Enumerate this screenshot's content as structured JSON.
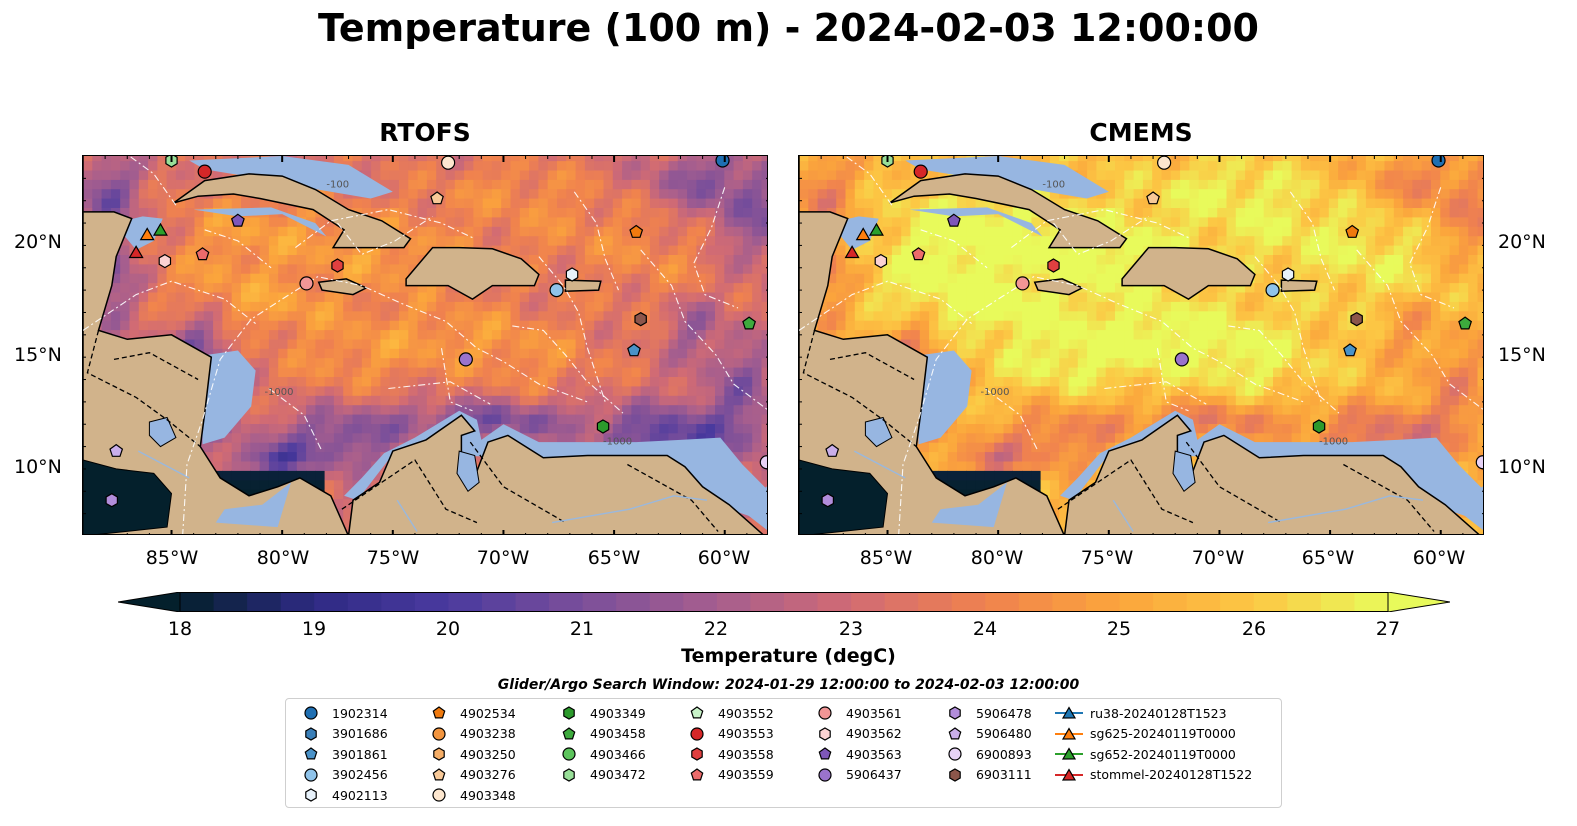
{
  "title": "Temperature (100 m) - 2024-02-03 12:00:00",
  "panels": [
    {
      "title": "RTOFS",
      "field": "rtofs"
    },
    {
      "title": "CMEMS",
      "field": "cmems"
    }
  ],
  "lon_ticks": [
    "85°W",
    "80°W",
    "75°W",
    "70°W",
    "65°W",
    "60°W"
  ],
  "lat_ticks": [
    "20°N",
    "15°N",
    "10°N"
  ],
  "extent": {
    "lon": [
      -89,
      -58
    ],
    "lat": [
      7,
      24
    ]
  },
  "colorbar": {
    "label": "Temperature (degC)",
    "ticks": [
      "18",
      "19",
      "20",
      "21",
      "22",
      "23",
      "24",
      "25",
      "26",
      "27"
    ],
    "range": [
      18,
      27
    ],
    "extend": "both",
    "colormap": "thermal"
  },
  "contour_labels": [
    "-100",
    "-1000"
  ],
  "search_window": "Glider/Argo Search Window: 2024-01-29 12:00:00 to 2024-02-03 12:00:00",
  "colors": {
    "land": "#d1b38b",
    "shelf": "#97b6e1",
    "contour": "#ffffff"
  },
  "legend": [
    {
      "label": "1902314",
      "marker": "circle",
      "color": "#1f6fb2"
    },
    {
      "label": "3901686",
      "marker": "hexagon",
      "color": "#3a7fb8"
    },
    {
      "label": "3901861",
      "marker": "pentagon",
      "color": "#4a92c8"
    },
    {
      "label": "3902456",
      "marker": "circle",
      "color": "#8fc3ea"
    },
    {
      "label": "4902113",
      "marker": "hexagon",
      "color": "#e8f2fb"
    },
    {
      "label": "4902534",
      "marker": "pentagon",
      "color": "#f07a0e"
    },
    {
      "label": "4903238",
      "marker": "circle",
      "color": "#f2953f"
    },
    {
      "label": "4903250",
      "marker": "hexagon",
      "color": "#f5ad66"
    },
    {
      "label": "4903276",
      "marker": "pentagon",
      "color": "#f8c998"
    },
    {
      "label": "4903348",
      "marker": "circle",
      "color": "#fde7cf"
    },
    {
      "label": "4903349",
      "marker": "hexagon",
      "color": "#2c9a2c"
    },
    {
      "label": "4903458",
      "marker": "pentagon",
      "color": "#3daa3d"
    },
    {
      "label": "4903466",
      "marker": "circle",
      "color": "#5cc45c"
    },
    {
      "label": "4903472",
      "marker": "hexagon",
      "color": "#98df98"
    },
    {
      "label": "4903552",
      "marker": "pentagon",
      "color": "#c8f2c8"
    },
    {
      "label": "4903553",
      "marker": "circle",
      "color": "#d62728"
    },
    {
      "label": "4903558",
      "marker": "hexagon",
      "color": "#e04040"
    },
    {
      "label": "4903559",
      "marker": "pentagon",
      "color": "#ec6b6b"
    },
    {
      "label": "4903561",
      "marker": "circle",
      "color": "#f29696"
    },
    {
      "label": "4903562",
      "marker": "hexagon",
      "color": "#fbd2d2"
    },
    {
      "label": "4903563",
      "marker": "pentagon",
      "color": "#7e57b9"
    },
    {
      "label": "5906437",
      "marker": "circle",
      "color": "#9a73cc"
    },
    {
      "label": "5906478",
      "marker": "hexagon",
      "color": "#b28ddb"
    },
    {
      "label": "5906480",
      "marker": "pentagon",
      "color": "#c9aeea"
    },
    {
      "label": "6900893",
      "marker": "circle",
      "color": "#e7d2f6"
    },
    {
      "label": "6903111",
      "marker": "hexagon",
      "color": "#8c564b"
    },
    {
      "label": "ru38-20240128T1523",
      "marker": "triangle-line",
      "color": "#1f77b4"
    },
    {
      "label": "sg625-20240119T0000",
      "marker": "triangle-line",
      "color": "#ff7f0e"
    },
    {
      "label": "sg652-20240119T0000",
      "marker": "triangle-line",
      "color": "#2ca02c"
    },
    {
      "label": "stommel-20240128T1522",
      "marker": "triangle-line",
      "color": "#d62728"
    }
  ],
  "map_markers": [
    {
      "id": "1902314",
      "lon": -60.1,
      "lat": 23.8
    },
    {
      "id": "4903472",
      "lon": -85.0,
      "lat": 23.8
    },
    {
      "id": "4903348",
      "lon": -72.5,
      "lat": 23.7
    },
    {
      "id": "4903553",
      "lon": -83.5,
      "lat": 23.3
    },
    {
      "id": "4903276",
      "lon": -73.0,
      "lat": 22.1
    },
    {
      "id": "4903563",
      "lon": -82.0,
      "lat": 21.1
    },
    {
      "id": "4902534",
      "lon": -64.0,
      "lat": 20.6
    },
    {
      "id": "sg652-20240119T0000",
      "lon": -85.5,
      "lat": 20.7
    },
    {
      "id": "sg625-20240119T0000",
      "lon": -86.1,
      "lat": 20.5
    },
    {
      "id": "stommel-20240128T1522",
      "lon": -86.6,
      "lat": 19.7
    },
    {
      "id": "4903559",
      "lon": -83.6,
      "lat": 19.6
    },
    {
      "id": "4903562",
      "lon": -85.3,
      "lat": 19.3
    },
    {
      "id": "4903558",
      "lon": -77.5,
      "lat": 19.1
    },
    {
      "id": "4903561",
      "lon": -78.9,
      "lat": 18.3
    },
    {
      "id": "4902113",
      "lon": -66.9,
      "lat": 18.7
    },
    {
      "id": "3902456",
      "lon": -67.6,
      "lat": 18.0
    },
    {
      "id": "4903458",
      "lon": -58.9,
      "lat": 16.5
    },
    {
      "id": "6903111",
      "lon": -63.8,
      "lat": 16.7
    },
    {
      "id": "3901861",
      "lon": -64.1,
      "lat": 15.3
    },
    {
      "id": "5906437",
      "lon": -71.7,
      "lat": 14.9
    },
    {
      "id": "4903349",
      "lon": -65.5,
      "lat": 11.9
    },
    {
      "id": "5906480",
      "lon": -87.5,
      "lat": 10.8
    },
    {
      "id": "6900893",
      "lon": -58.1,
      "lat": 10.3
    },
    {
      "id": "5906478",
      "lon": -87.7,
      "lat": 8.6
    }
  ]
}
